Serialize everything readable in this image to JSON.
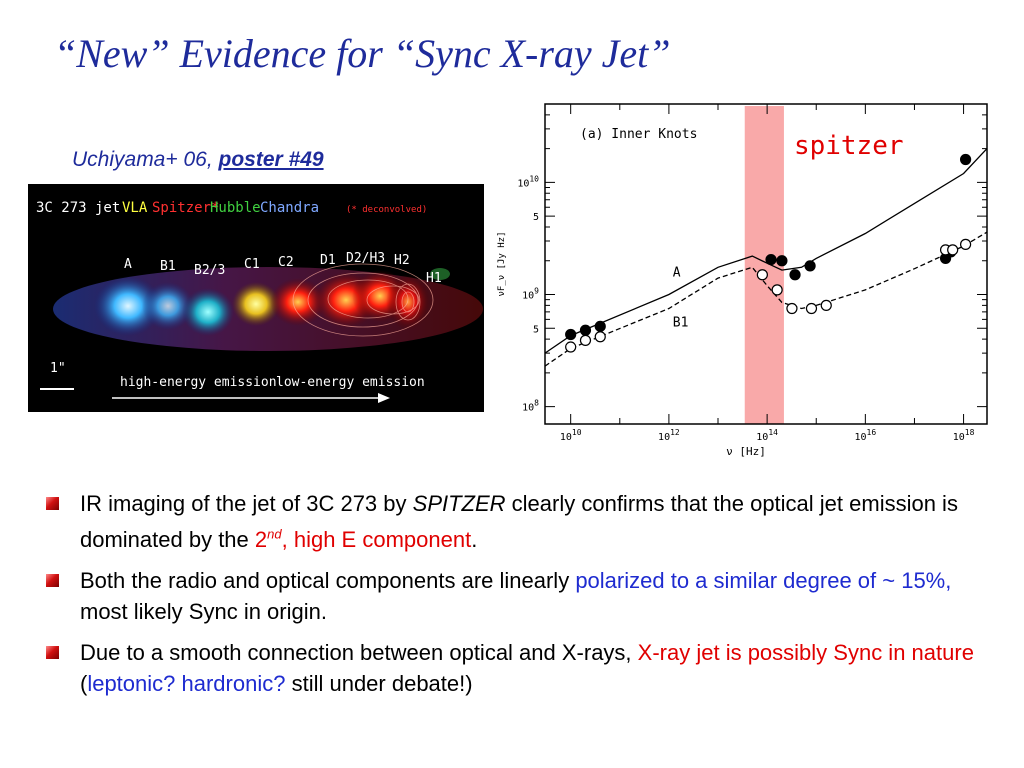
{
  "title": "“New” Evidence for “Sync X-ray Jet”",
  "credit": {
    "authors": "Uchiyama+  06, ",
    "poster": "poster #49"
  },
  "jet_image": {
    "source": "3C 273  jet",
    "bands": [
      {
        "label": "VLA",
        "color": "#ffff40"
      },
      {
        "label": "Spitzer*",
        "color": "#ff3030"
      },
      {
        "label": "Hubble",
        "color": "#40d040"
      },
      {
        "label": "Chandra",
        "color": "#7fa8ff"
      }
    ],
    "note": "(* deconvolved)",
    "knots": [
      "A",
      "B1",
      "B2/3",
      "C1",
      "C2",
      "D1",
      "D2/H3",
      "H2",
      "H1"
    ],
    "scale": "1\"",
    "high_label": "high-energy emission",
    "low_label": "low-energy emission"
  },
  "chart_data": {
    "type": "scatter",
    "panel_label": "(a) Inner Knots",
    "xlabel": "ν [Hz]",
    "ylabel": "νF_ν [Jy Hz]",
    "x_scale": "log",
    "y_scale": "log",
    "xlim": [
      3000000000.0,
      3e+18
    ],
    "ylim": [
      70000000.0,
      50000000000.0
    ],
    "x_ticks": [
      "10^10",
      "10^12",
      "10^14",
      "10^16",
      "10^18"
    ],
    "y_ticks": [
      "10^8",
      "5",
      "10^9",
      "5",
      "10^10"
    ],
    "band": {
      "label": "spitzer",
      "x_range": [
        35000000000000.0,
        220000000000000.0
      ],
      "color": "#f9a9a9"
    },
    "series": [
      {
        "name": "A",
        "marker": "filled",
        "line": "solid",
        "x": [
          10000000000.0,
          20000000000.0,
          40000000000.0,
          120000000000000.0,
          200000000000000.0,
          370000000000000.0,
          750000000000000.0,
          4.3e+17,
          5.5e+17,
          1.1e+18
        ],
        "y": [
          440000000.0,
          480000000.0,
          520000000.0,
          2050000000.0,
          2000000000.0,
          1500000000.0,
          1800000000.0,
          2100000000.0,
          2400000000.0,
          16000000000.0
        ],
        "model_x": [
          3000000000.0,
          10000000000.0,
          1000000000000.0,
          10000000000000.0,
          50000000000000.0,
          100000000000000.0,
          200000000000000.0,
          500000000000000.0,
          1000000000000000.0,
          1e+16,
          1e+17,
          1e+18,
          3e+18
        ],
        "model_y": [
          300000000.0,
          430000000.0,
          1000000000.0,
          1750000000.0,
          2200000000.0,
          1900000000.0,
          1650000000.0,
          1750000000.0,
          2100000000.0,
          3500000000.0,
          6500000000.0,
          12000000000.0,
          20000000000.0
        ]
      },
      {
        "name": "B1",
        "marker": "open",
        "line": "dashed",
        "x": [
          10000000000.0,
          20000000000.0,
          40000000000.0,
          80000000000000.0,
          160000000000000.0,
          320000000000000.0,
          800000000000000.0,
          1600000000000000.0,
          4.3e+17,
          6e+17,
          1.1e+18
        ],
        "y": [
          340000000.0,
          390000000.0,
          420000000.0,
          1500000000.0,
          1100000000.0,
          750000000.0,
          750000000.0,
          800000000.0,
          2500000000.0,
          2500000000.0,
          2800000000.0
        ],
        "model_x": [
          3000000000.0,
          10000000000.0,
          1000000000000.0,
          10000000000000.0,
          50000000000000.0,
          100000000000000.0,
          200000000000000.0,
          500000000000000.0,
          1000000000000000.0,
          1e+16,
          1e+17,
          1e+18,
          3e+18
        ],
        "model_y": [
          230000000.0,
          330000000.0,
          750000000.0,
          1400000000.0,
          1750000000.0,
          1200000000.0,
          850000000.0,
          750000000.0,
          800000000.0,
          1100000000.0,
          1700000000.0,
          2700000000.0,
          3600000000.0
        ]
      }
    ]
  },
  "bullets": [
    {
      "parts": [
        {
          "text": "IR imaging of the jet of 3C 273 by ",
          "cls": ""
        },
        {
          "text": "SPITZER",
          "cls": "it"
        },
        {
          "text": " clearly confirms that the optical jet emission is dominated by the ",
          "cls": ""
        },
        {
          "text": "2",
          "cls": "red"
        },
        {
          "text": "nd",
          "cls": "red sup"
        },
        {
          "text": ", high E component",
          "cls": "red"
        },
        {
          "text": ".",
          "cls": ""
        }
      ]
    },
    {
      "parts": [
        {
          "text": "Both the radio and optical components are linearly ",
          "cls": ""
        },
        {
          "text": "polarized to a similar degree of  ~ 15%,",
          "cls": "blue"
        },
        {
          "text": " most likely Sync in origin.",
          "cls": ""
        }
      ]
    },
    {
      "parts": [
        {
          "text": "Due to a smooth connection between optical and X-rays, ",
          "cls": ""
        },
        {
          "text": "X-ray jet is possibly Sync in nature",
          "cls": "red"
        },
        {
          "text": " (",
          "cls": ""
        },
        {
          "text": "leptonic? hardronic?",
          "cls": "blue"
        },
        {
          "text": "  still under debate!)",
          "cls": ""
        }
      ]
    }
  ]
}
